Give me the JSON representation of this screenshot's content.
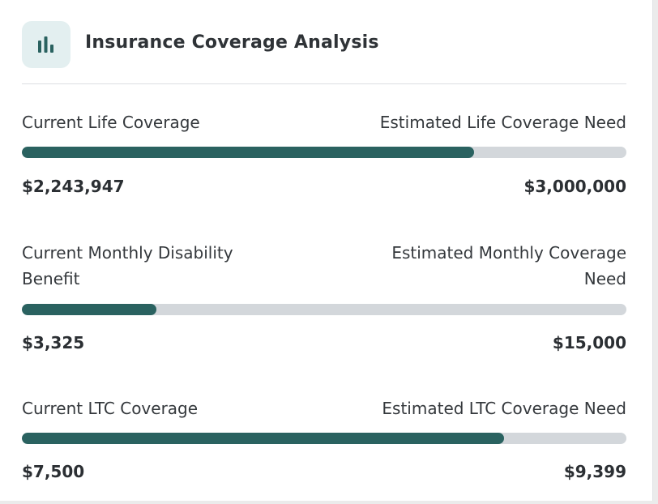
{
  "header": {
    "title": "Insurance Coverage Analysis",
    "icon": "bar-chart-icon"
  },
  "metrics": [
    {
      "current_label": "Current Life Coverage",
      "estimate_label": "Estimated Life Coverage Need",
      "current_value": "$2,243,947",
      "estimate_value": "$3,000,000",
      "progress": 0.748
    },
    {
      "current_label": "Current Monthly Disability Benefit",
      "estimate_label": "Estimated Monthly Coverage Need",
      "current_value": "$3,325",
      "estimate_value": "$15,000",
      "progress": 0.222
    },
    {
      "current_label": "Current LTC Coverage",
      "estimate_label": "Estimated LTC Coverage Need",
      "current_value": "$7,500",
      "estimate_value": "$9,399",
      "progress": 0.798
    }
  ],
  "colors": {
    "fill": "#2a6260",
    "track": "#d3d7db",
    "icon_bg": "#e3eff0"
  }
}
